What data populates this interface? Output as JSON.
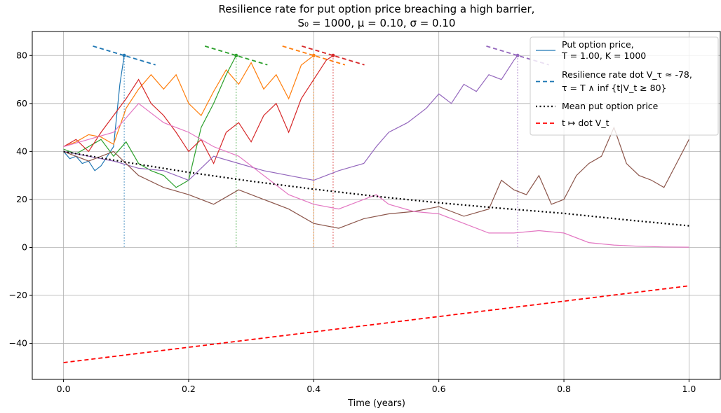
{
  "chart_data": {
    "type": "line",
    "title_line1": "Resilience rate for put option price breaching a high barrier,",
    "title_line2": "S₀ = 1000, μ = 0.10, σ = 0.10",
    "xlabel": "Time (years)",
    "ylabel": "",
    "xlim": [
      -0.05,
      1.05
    ],
    "ylim": [
      -55,
      90
    ],
    "grid": true,
    "legend_placement": "upper right",
    "xticks": [
      0.0,
      0.2,
      0.4,
      0.6,
      0.8,
      1.0
    ],
    "xtick_labels": [
      "0.0",
      "0.2",
      "0.4",
      "0.6",
      "0.8",
      "1.0"
    ],
    "yticks": [
      -40,
      -20,
      0,
      20,
      40,
      60,
      80
    ],
    "ytick_labels": [
      "−40",
      "−20",
      "0",
      "20",
      "40",
      "60",
      "80"
    ],
    "legend": [
      {
        "kind": "solid",
        "color": "#1f77b4",
        "line1": "Put option price,",
        "line2": "T = 1.00, K = 1000"
      },
      {
        "kind": "dashed",
        "color": "#1f77b4",
        "line1": "Resilience rate dot V_τ ≈ -78,",
        "line2": "τ = T ∧ inf {t|V_t ≥ 80}"
      },
      {
        "kind": "dotted",
        "color": "#000000",
        "line1": "Mean put option price",
        "line2": ""
      },
      {
        "kind": "dashed",
        "color": "#ff0000",
        "line1": "t ↦ dot V_t",
        "line2": ""
      }
    ],
    "mean_price": {
      "name": "Mean put option price",
      "color": "#000000",
      "x": [
        0.0,
        0.1,
        0.2,
        0.3,
        0.4,
        0.5,
        0.6,
        0.7,
        0.8,
        0.9,
        1.0
      ],
      "y": [
        40,
        35.5,
        31.3,
        27.6,
        24.3,
        21.3,
        18.6,
        16.3,
        14.2,
        11.5,
        9
      ]
    },
    "resilience_line": {
      "name": "t ↦ dot V_t",
      "color": "#ff0000",
      "x": [
        0.0,
        1.0
      ],
      "y": [
        -48,
        -16
      ]
    },
    "barrier": 80,
    "paths": [
      {
        "color": "#1f77b4",
        "x": [
          0.0,
          0.01,
          0.02,
          0.03,
          0.04,
          0.05,
          0.06,
          0.07,
          0.08,
          0.085,
          0.09,
          0.097
        ],
        "y": [
          40,
          37,
          38,
          35,
          36,
          32,
          34,
          38,
          42,
          55,
          68,
          80
        ],
        "hit_t": 0.097
      },
      {
        "color": "#ff7f0e",
        "x": [
          0.0,
          0.02,
          0.04,
          0.06,
          0.08,
          0.1,
          0.12,
          0.14,
          0.16,
          0.18,
          0.2,
          0.22,
          0.24,
          0.26,
          0.28,
          0.3,
          0.32,
          0.34,
          0.36,
          0.38,
          0.4
        ],
        "y": [
          42,
          44,
          47,
          46,
          43,
          58,
          66,
          72,
          66,
          72,
          60,
          55,
          65,
          74,
          68,
          77,
          66,
          72,
          62,
          76,
          80
        ],
        "hit_t": 0.4
      },
      {
        "color": "#2ca02c",
        "x": [
          0.0,
          0.02,
          0.04,
          0.06,
          0.08,
          0.1,
          0.12,
          0.14,
          0.16,
          0.18,
          0.2,
          0.22,
          0.24,
          0.26,
          0.276
        ],
        "y": [
          41,
          39,
          42,
          45,
          38,
          44,
          35,
          32,
          30,
          25,
          28,
          50,
          60,
          72,
          80
        ],
        "hit_t": 0.276
      },
      {
        "color": "#d62728",
        "x": [
          0.0,
          0.02,
          0.04,
          0.06,
          0.08,
          0.1,
          0.12,
          0.14,
          0.16,
          0.18,
          0.2,
          0.22,
          0.24,
          0.26,
          0.28,
          0.3,
          0.32,
          0.34,
          0.36,
          0.38,
          0.4,
          0.42,
          0.431
        ],
        "y": [
          42,
          45,
          40,
          48,
          55,
          62,
          70,
          60,
          55,
          48,
          40,
          45,
          35,
          48,
          52,
          44,
          55,
          60,
          48,
          62,
          70,
          78,
          80
        ],
        "hit_t": 0.431
      },
      {
        "color": "#9467bd",
        "x": [
          0.0,
          0.04,
          0.08,
          0.12,
          0.16,
          0.2,
          0.24,
          0.28,
          0.32,
          0.36,
          0.4,
          0.44,
          0.48,
          0.5,
          0.52,
          0.55,
          0.58,
          0.6,
          0.62,
          0.64,
          0.66,
          0.68,
          0.7,
          0.72,
          0.726
        ],
        "y": [
          40,
          38,
          36,
          33,
          32,
          28,
          38,
          35,
          32,
          30,
          28,
          32,
          35,
          42,
          48,
          52,
          58,
          64,
          60,
          68,
          65,
          72,
          70,
          78,
          80
        ],
        "hit_t": 0.726
      },
      {
        "color": "#8c564b",
        "x": [
          0.0,
          0.04,
          0.08,
          0.12,
          0.16,
          0.2,
          0.24,
          0.28,
          0.32,
          0.36,
          0.4,
          0.44,
          0.48,
          0.52,
          0.56,
          0.6,
          0.64,
          0.68,
          0.7,
          0.72,
          0.74,
          0.76,
          0.78,
          0.8,
          0.82,
          0.84,
          0.86,
          0.88,
          0.9,
          0.92,
          0.94,
          0.96,
          0.98,
          1.0
        ],
        "y": [
          40,
          36,
          40,
          30,
          25,
          22,
          18,
          24,
          20,
          16,
          10,
          8,
          12,
          14,
          15,
          17,
          13,
          16,
          28,
          24,
          22,
          30,
          18,
          20,
          30,
          35,
          38,
          50,
          35,
          30,
          28,
          25,
          35,
          45
        ],
        "hit_t": null
      },
      {
        "color": "#e377c2",
        "x": [
          0.0,
          0.04,
          0.08,
          0.12,
          0.16,
          0.2,
          0.24,
          0.28,
          0.32,
          0.36,
          0.4,
          0.44,
          0.48,
          0.5,
          0.52,
          0.56,
          0.6,
          0.64,
          0.68,
          0.72,
          0.76,
          0.8,
          0.84,
          0.88,
          0.92,
          0.96,
          1.0
        ],
        "y": [
          42,
          45,
          48,
          60,
          52,
          48,
          42,
          38,
          30,
          22,
          18,
          16,
          20,
          22,
          18,
          15,
          14,
          10,
          6,
          6,
          7,
          6,
          2,
          1,
          0.5,
          0.2,
          0.1
        ],
        "hit_t": null
      }
    ],
    "resilience_slope": -78
  }
}
